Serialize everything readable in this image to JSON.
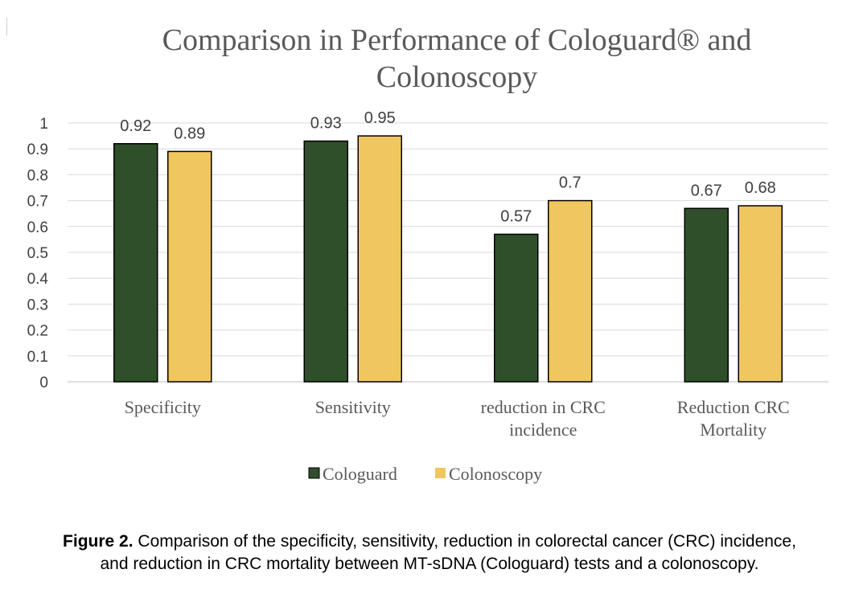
{
  "chart_data": {
    "type": "bar",
    "title": "Comparison in Performance of Cologuard® and Colonoscopy",
    "title_lines": [
      "Comparison in Performance of Cologuard® and",
      "Colonoscopy"
    ],
    "categories": [
      "Specificity",
      "Sensitivity",
      "reduction in CRC incidence",
      "Reduction CRC Mortality"
    ],
    "category_lines": [
      [
        "Specificity"
      ],
      [
        "Sensitivity"
      ],
      [
        "reduction in CRC",
        "incidence"
      ],
      [
        "Reduction CRC",
        "Mortality"
      ]
    ],
    "series": [
      {
        "name": "Cologuard",
        "color": "#2f4f2a",
        "values": [
          0.92,
          0.93,
          0.57,
          0.67
        ],
        "labels": [
          "0.92",
          "0.93",
          "0.57",
          "0.67"
        ]
      },
      {
        "name": "Colonoscopy",
        "color": "#f0c75e",
        "values": [
          0.89,
          0.95,
          0.7,
          0.68
        ],
        "labels": [
          "0.89",
          "0.95",
          "0.7",
          "0.68"
        ]
      }
    ],
    "ylim": [
      0,
      1
    ],
    "yticks": [
      "0",
      "0.1",
      "0.2",
      "0.3",
      "0.4",
      "0.5",
      "0.6",
      "0.7",
      "0.8",
      "0.9",
      "1"
    ],
    "grid": true,
    "legend": "bottom",
    "xlabel": "",
    "ylabel": ""
  },
  "caption": {
    "label": "Figure 2.",
    "line1": " Comparison of the specificity, sensitivity, reduction in colorectal cancer (CRC) incidence,",
    "line2": "and reduction in CRC mortality between MT-sDNA (Cologuard) tests and a colonoscopy."
  }
}
